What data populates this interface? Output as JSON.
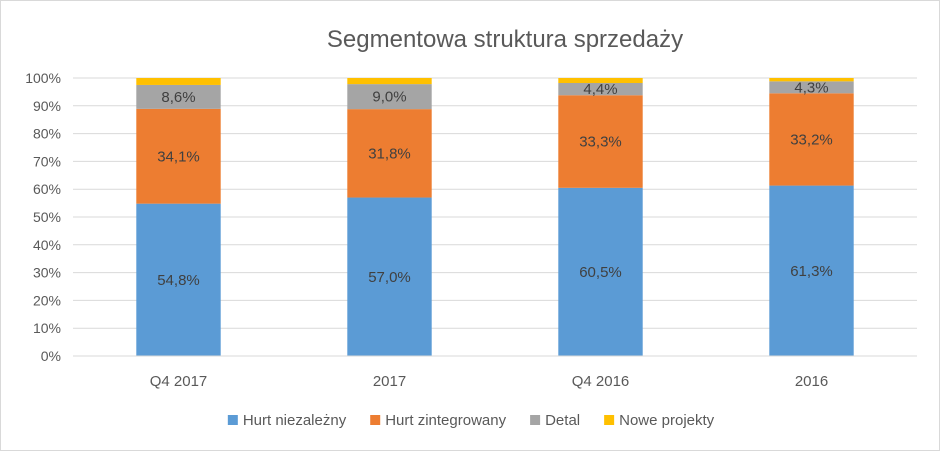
{
  "chart_data": {
    "type": "bar",
    "stacked": true,
    "title": "Segmentowa struktura sprzedaży",
    "xlabel": "",
    "ylabel": "",
    "ylim": [
      0,
      100
    ],
    "yticks": [
      "0%",
      "10%",
      "20%",
      "30%",
      "40%",
      "50%",
      "60%",
      "70%",
      "80%",
      "90%",
      "100%"
    ],
    "grid": true,
    "legend_position": "bottom",
    "categories": [
      "Q4 2017",
      "2017",
      "Q4 2016",
      "2016"
    ],
    "series": [
      {
        "name": "Hurt niezależny",
        "color": "#5b9bd5",
        "values": [
          54.8,
          57.0,
          60.5,
          61.3
        ],
        "labels": [
          "54,8%",
          "57,0%",
          "60,5%",
          "61,3%"
        ]
      },
      {
        "name": "Hurt zintegrowany",
        "color": "#ed7d31",
        "values": [
          34.1,
          31.8,
          33.3,
          33.2
        ],
        "labels": [
          "34,1%",
          "31,8%",
          "33,3%",
          "33,2%"
        ]
      },
      {
        "name": "Detal",
        "color": "#a5a5a5",
        "values": [
          8.6,
          9.0,
          4.4,
          4.3
        ],
        "labels": [
          "8,6%",
          "9,0%",
          "4,4%",
          "4,3%"
        ]
      },
      {
        "name": "Nowe projekty",
        "color": "#ffc000",
        "values": [
          2.5,
          2.2,
          1.8,
          1.2
        ],
        "labels": [
          "",
          "",
          "",
          ""
        ]
      }
    ]
  }
}
